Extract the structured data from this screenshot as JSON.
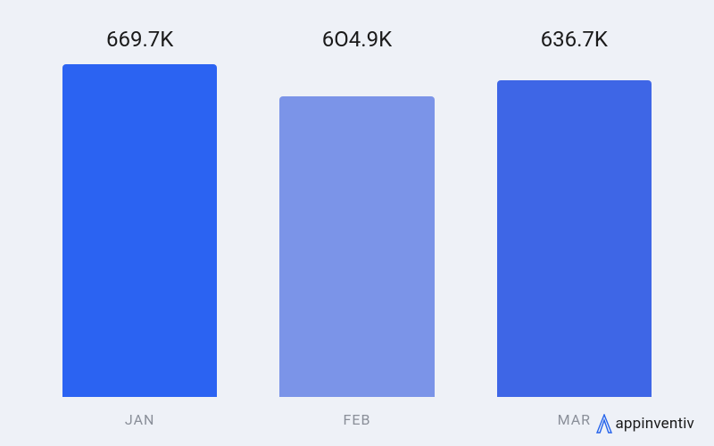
{
  "chart": {
    "type": "bar",
    "background_color": "#eef1f7",
    "categories": [
      "JAN",
      "FEB",
      "MAR"
    ],
    "values": [
      669.7,
      604.9,
      636.7
    ],
    "value_labels": [
      "669.7K",
      "6O4.9K",
      "636.7K"
    ],
    "bar_colors": [
      "#2b63f2",
      "#7b94e8",
      "#3e66e6"
    ],
    "value_label_fontsize": 24,
    "value_label_color": "#1a1a1a",
    "category_label_fontsize": 16,
    "category_label_color": "#8a8f99",
    "max_value": 669.7,
    "bar_border_radius": 4
  },
  "brand": {
    "name": "appinventiv",
    "icon_color": "#2563eb",
    "text_color": "#1a1a1a"
  }
}
